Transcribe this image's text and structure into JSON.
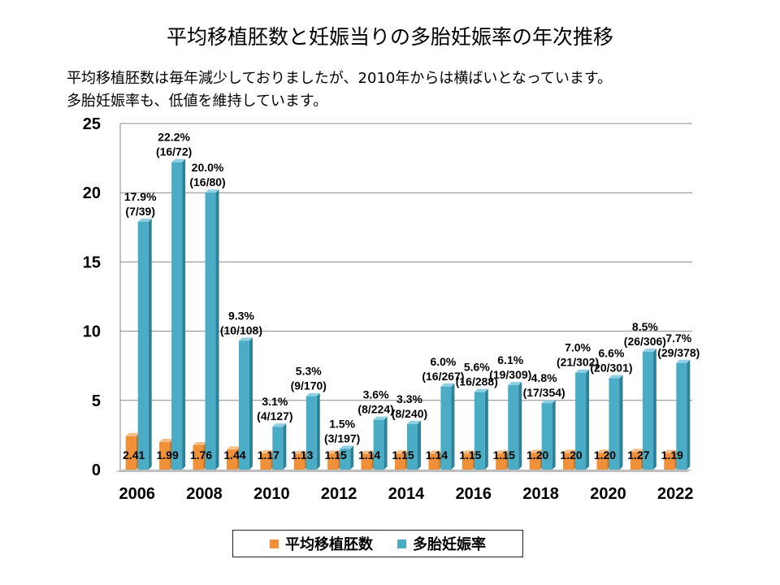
{
  "page": {
    "title": "平均移植胚数と妊娠当りの多胎妊娠率の年次推移",
    "note_line1": "平均移植胚数は毎年減少しておりましたが、2010年からは横ばいとなっています。",
    "note_line2": "多胎妊娠率も、低値を維持しています。"
  },
  "chart_data": {
    "type": "bar",
    "title": "平均移植胚数と妊娠当りの多胎妊娠率の年次推移",
    "categories": [
      "2006",
      "2007",
      "2008",
      "2009",
      "2010",
      "2011",
      "2012",
      "2013",
      "2014",
      "2015",
      "2016",
      "2017",
      "2018",
      "2019",
      "2020",
      "2021",
      "2022"
    ],
    "x_tick_labels": [
      "2006",
      "",
      "2008",
      "",
      "2010",
      "",
      "2012",
      "",
      "2014",
      "",
      "2016",
      "",
      "2018",
      "",
      "2020",
      "",
      "2022"
    ],
    "ylim": [
      0,
      25
    ],
    "yticks": [
      0,
      5,
      10,
      15,
      20,
      25
    ],
    "grid": true,
    "legend_position": "bottom",
    "series": [
      {
        "name": "平均移植胚数",
        "color": "#f0913a",
        "values": [
          2.41,
          1.99,
          1.76,
          1.44,
          1.17,
          1.13,
          1.15,
          1.14,
          1.15,
          1.14,
          1.15,
          1.15,
          1.2,
          1.2,
          1.2,
          1.27,
          1.19
        ],
        "labels": [
          "2.41",
          "1.99",
          "1.76",
          "1.44",
          "1.17",
          "1.13",
          "1.15",
          "1.14",
          "1.15",
          "1.14",
          "1.15",
          "1.15",
          "1.20",
          "1.20",
          "1.20",
          "1.27",
          "1.19"
        ]
      },
      {
        "name": "多胎妊娠率",
        "color": "#4bacc6",
        "values": [
          17.9,
          22.2,
          20.0,
          9.3,
          3.1,
          5.3,
          1.5,
          3.6,
          3.3,
          6.0,
          5.6,
          6.1,
          4.8,
          7.0,
          6.6,
          8.5,
          7.7
        ],
        "labels": [
          "17.9%",
          "22.2%",
          "20.0%",
          "9.3%",
          "3.1%",
          "5.3%",
          "1.5%",
          "3.6%",
          "3.3%",
          "6.0%",
          "5.6%",
          "6.1%",
          "4.8%",
          "7.0%",
          "6.6%",
          "8.5%",
          "7.7%"
        ],
        "sublabels": [
          "(7/39)",
          "(16/72)",
          "(16/80)",
          "(10/108)",
          "(4/127)",
          "(9/170)",
          "(3/197)",
          "(8/224)",
          "(8/240)",
          "(16/267)",
          "(16/288)",
          "(19/309)",
          "(17/354)",
          "(21/302)",
          "(20/301)",
          "(26/306)",
          "(29/378)"
        ]
      }
    ]
  }
}
